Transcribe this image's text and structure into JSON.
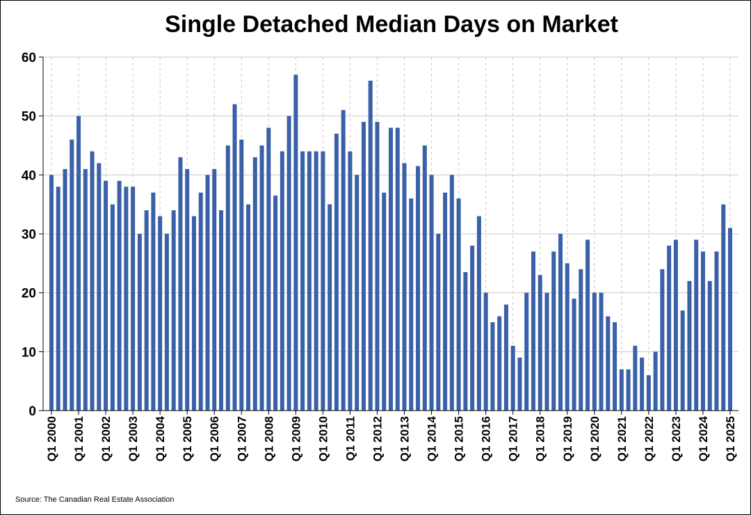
{
  "chart_data": {
    "type": "bar",
    "title": "Single Detached Median Days on Market",
    "source": "Source: The Canadian Real Estate Association",
    "xlabel": "",
    "ylabel": "",
    "ylim": [
      0,
      60
    ],
    "yticks": [
      0,
      10,
      20,
      30,
      40,
      50,
      60
    ],
    "grid": true,
    "bar_color": "#3a60a8",
    "x_tick_labels": [
      "Q1 2000",
      "Q1 2001",
      "Q1 2002",
      "Q1 2003",
      "Q1 2004",
      "Q1 2005",
      "Q1 2006",
      "Q1 2007",
      "Q1 2008",
      "Q1 2009",
      "Q1 2010",
      "Q1 2011",
      "Q1 2012",
      "Q1 2013",
      "Q1 2014",
      "Q1 2015",
      "Q1 2016",
      "Q1 2017",
      "Q1 2018",
      "Q1 2019",
      "Q1 2020",
      "Q1 2021",
      "Q1 2022",
      "Q1 2023",
      "Q1 2024",
      "Q1 2025"
    ],
    "categories": [
      "Q1 2000",
      "Q2 2000",
      "Q3 2000",
      "Q4 2000",
      "Q1 2001",
      "Q2 2001",
      "Q3 2001",
      "Q4 2001",
      "Q1 2002",
      "Q2 2002",
      "Q3 2002",
      "Q4 2002",
      "Q1 2003",
      "Q2 2003",
      "Q3 2003",
      "Q4 2003",
      "Q1 2004",
      "Q2 2004",
      "Q3 2004",
      "Q4 2004",
      "Q1 2005",
      "Q2 2005",
      "Q3 2005",
      "Q4 2005",
      "Q1 2006",
      "Q2 2006",
      "Q3 2006",
      "Q4 2006",
      "Q1 2007",
      "Q2 2007",
      "Q3 2007",
      "Q4 2007",
      "Q1 2008",
      "Q2 2008",
      "Q3 2008",
      "Q4 2008",
      "Q1 2009",
      "Q2 2009",
      "Q3 2009",
      "Q4 2009",
      "Q1 2010",
      "Q2 2010",
      "Q3 2010",
      "Q4 2010",
      "Q1 2011",
      "Q2 2011",
      "Q3 2011",
      "Q4 2011",
      "Q1 2012",
      "Q2 2012",
      "Q3 2012",
      "Q4 2012",
      "Q1 2013",
      "Q2 2013",
      "Q3 2013",
      "Q4 2013",
      "Q1 2014",
      "Q2 2014",
      "Q3 2014",
      "Q4 2014",
      "Q1 2015",
      "Q2 2015",
      "Q3 2015",
      "Q4 2015",
      "Q1 2016",
      "Q2 2016",
      "Q3 2016",
      "Q4 2016",
      "Q1 2017",
      "Q2 2017",
      "Q3 2017",
      "Q4 2017",
      "Q1 2018",
      "Q2 2018",
      "Q3 2018",
      "Q4 2018",
      "Q1 2019",
      "Q2 2019",
      "Q3 2019",
      "Q4 2019",
      "Q1 2020",
      "Q2 2020",
      "Q3 2020",
      "Q4 2020",
      "Q1 2021",
      "Q2 2021",
      "Q3 2021",
      "Q4 2021",
      "Q1 2022",
      "Q2 2022",
      "Q3 2022",
      "Q4 2022",
      "Q1 2023",
      "Q2 2023",
      "Q3 2023",
      "Q4 2023",
      "Q1 2024",
      "Q2 2024",
      "Q3 2024",
      "Q4 2024",
      "Q1 2025"
    ],
    "values": [
      40,
      38,
      41,
      46,
      50,
      41,
      44,
      42,
      39,
      35,
      39,
      38,
      38,
      30,
      34,
      37,
      33,
      30,
      34,
      43,
      41,
      33,
      37,
      40,
      41,
      34,
      45,
      52,
      46,
      35,
      43,
      45,
      48,
      36.5,
      44,
      50,
      57,
      44,
      44,
      44,
      44,
      35,
      47,
      51,
      44,
      40,
      49,
      56,
      49,
      37,
      48,
      48,
      42,
      36,
      41.5,
      45,
      40,
      30,
      37,
      40,
      36,
      23.5,
      28,
      33,
      20,
      15,
      16,
      18,
      11,
      9,
      20,
      27,
      23,
      20,
      27,
      30,
      25,
      19,
      24,
      29,
      20,
      20,
      16,
      15,
      7,
      7,
      11,
      9,
      6,
      10,
      24,
      28,
      29,
      17,
      22,
      29,
      27,
      22,
      27,
      35,
      31
    ]
  }
}
